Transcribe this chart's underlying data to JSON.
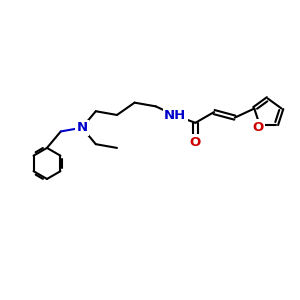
{
  "bg_color": "#ffffff",
  "bond_color": "#000000",
  "N_color": "#0000cc",
  "O_color": "#cc0000",
  "lw": 1.5,
  "fs": 9.5,
  "xlim": [
    0,
    10
  ],
  "ylim": [
    2,
    8
  ],
  "figsize": [
    3.0,
    3.0
  ],
  "dpi": 100
}
